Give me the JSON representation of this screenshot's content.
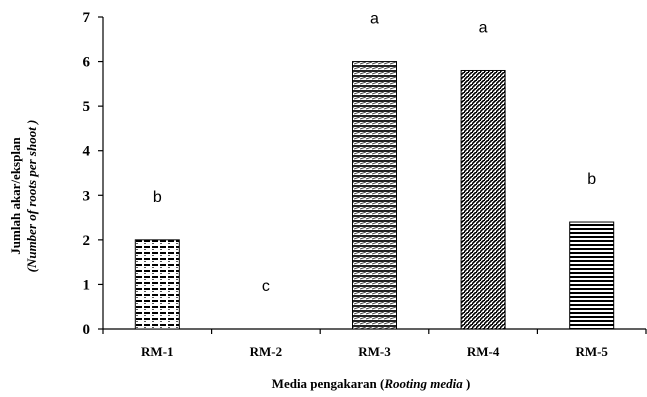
{
  "chart_data": {
    "type": "bar",
    "categories": [
      "RM-1",
      "RM-2",
      "RM-3",
      "RM-4",
      "RM-5"
    ],
    "values": [
      2.0,
      0.0,
      6.0,
      5.8,
      2.4
    ],
    "significance_letters": [
      "b",
      "c",
      "a",
      "a",
      "b"
    ],
    "ylim": [
      0,
      7
    ],
    "yticks": [
      0,
      1,
      2,
      3,
      4,
      5,
      6,
      7
    ],
    "xlabel_main": "Media pengakaran (",
    "xlabel_italic": "Rooting media",
    "xlabel_close": " )",
    "ylabel_line1": "Jumlah akar/eksplan",
    "ylabel_line2": "(Number of roots per shoot )",
    "grid": false,
    "legend": "none",
    "colors": {
      "bar_fill": "#8c8c8c",
      "bar_stroke": "#000000",
      "axis": "#000000"
    },
    "patterns": [
      "dashed-horizontal",
      "none",
      "diagonal-rows",
      "fine-diagonal",
      "dense-horizontal"
    ]
  }
}
